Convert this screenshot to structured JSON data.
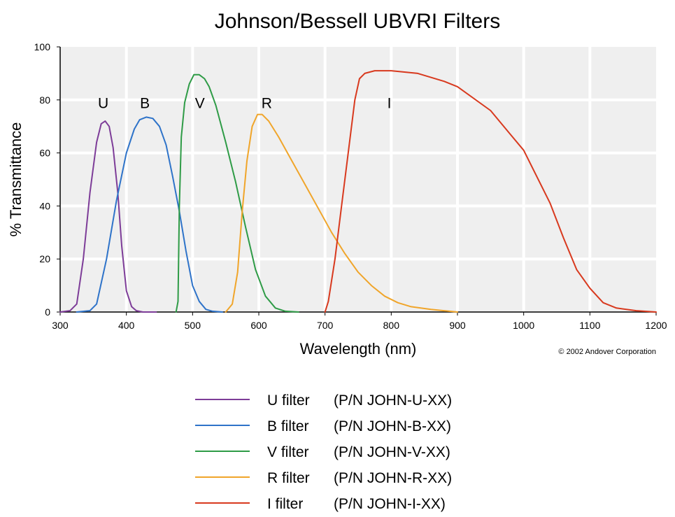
{
  "chart_data": {
    "type": "line",
    "title": "Johnson/Bessell UBVRI Filters",
    "xlabel": "Wavelength (nm)",
    "ylabel": "% Transmittance",
    "xlim": [
      300,
      1200
    ],
    "ylim": [
      0,
      100
    ],
    "x_ticks": [
      "300",
      "400",
      "500",
      "600",
      "700",
      "800",
      "900",
      "1000",
      "1100",
      "1200"
    ],
    "y_ticks": [
      "0",
      "20",
      "40",
      "60",
      "80",
      "100"
    ],
    "grid": true,
    "copyright": "© 2002 Andover Corporation",
    "series": [
      {
        "name": "U",
        "legend_name": "U filter",
        "part_number": "(P/N JOHN-U-XX)",
        "color": "#7d3c98",
        "label_pos": [
          365,
          79
        ],
        "points": [
          [
            300,
            0
          ],
          [
            315,
            0.5
          ],
          [
            325,
            3
          ],
          [
            335,
            20
          ],
          [
            345,
            45
          ],
          [
            355,
            64
          ],
          [
            362,
            71
          ],
          [
            368,
            72
          ],
          [
            374,
            70
          ],
          [
            380,
            62
          ],
          [
            387,
            45
          ],
          [
            393,
            25
          ],
          [
            400,
            8
          ],
          [
            408,
            2
          ],
          [
            415,
            0.5
          ],
          [
            425,
            0
          ],
          [
            445,
            0
          ]
        ]
      },
      {
        "name": "B",
        "legend_name": "B filter",
        "part_number": "(P/N JOHN-B-XX)",
        "color": "#2e73c9",
        "label_pos": [
          428,
          79
        ],
        "points": [
          [
            325,
            0
          ],
          [
            345,
            0.5
          ],
          [
            355,
            3
          ],
          [
            370,
            20
          ],
          [
            385,
            42
          ],
          [
            400,
            60
          ],
          [
            412,
            69
          ],
          [
            420,
            72.5
          ],
          [
            430,
            73.5
          ],
          [
            440,
            73
          ],
          [
            450,
            70
          ],
          [
            460,
            63
          ],
          [
            470,
            51
          ],
          [
            480,
            38
          ],
          [
            490,
            23
          ],
          [
            500,
            10
          ],
          [
            510,
            4
          ],
          [
            520,
            1
          ],
          [
            530,
            0.3
          ],
          [
            545,
            0
          ]
        ]
      },
      {
        "name": "V",
        "legend_name": "V filter",
        "part_number": "(P/N JOHN-V-XX)",
        "color": "#2e9b46",
        "label_pos": [
          511,
          79
        ],
        "points": [
          [
            475,
            0
          ],
          [
            478,
            4
          ],
          [
            480,
            40
          ],
          [
            483,
            66
          ],
          [
            488,
            79
          ],
          [
            495,
            86
          ],
          [
            502,
            89.5
          ],
          [
            510,
            89.5
          ],
          [
            518,
            88
          ],
          [
            525,
            85
          ],
          [
            535,
            78
          ],
          [
            550,
            64
          ],
          [
            565,
            49
          ],
          [
            580,
            32
          ],
          [
            595,
            16
          ],
          [
            610,
            6
          ],
          [
            625,
            1.5
          ],
          [
            640,
            0.3
          ],
          [
            660,
            0
          ]
        ]
      },
      {
        "name": "R",
        "legend_name": "R filter",
        "part_number": "(P/N JOHN-R-XX)",
        "color": "#f0a52a",
        "label_pos": [
          612,
          79
        ],
        "points": [
          [
            550,
            0
          ],
          [
            560,
            3
          ],
          [
            568,
            15
          ],
          [
            575,
            38
          ],
          [
            582,
            57
          ],
          [
            590,
            70
          ],
          [
            598,
            74.5
          ],
          [
            605,
            74.5
          ],
          [
            615,
            72
          ],
          [
            630,
            66
          ],
          [
            650,
            57
          ],
          [
            670,
            48
          ],
          [
            690,
            39
          ],
          [
            710,
            30
          ],
          [
            730,
            22
          ],
          [
            750,
            15
          ],
          [
            770,
            10
          ],
          [
            790,
            6
          ],
          [
            810,
            3.5
          ],
          [
            830,
            2
          ],
          [
            860,
            1
          ],
          [
            900,
            0
          ]
        ]
      },
      {
        "name": "I",
        "legend_name": "I filter",
        "part_number": "(P/N JOHN-I-XX)",
        "color": "#d8391e",
        "label_pos": [
          797,
          79
        ],
        "points": [
          [
            700,
            0
          ],
          [
            705,
            4
          ],
          [
            715,
            20
          ],
          [
            725,
            40
          ],
          [
            735,
            60
          ],
          [
            745,
            80
          ],
          [
            752,
            88
          ],
          [
            760,
            90
          ],
          [
            775,
            91
          ],
          [
            800,
            91
          ],
          [
            840,
            90
          ],
          [
            880,
            87
          ],
          [
            900,
            85
          ],
          [
            950,
            76
          ],
          [
            980,
            67
          ],
          [
            1000,
            61
          ],
          [
            1020,
            51
          ],
          [
            1040,
            41
          ],
          [
            1060,
            28
          ],
          [
            1080,
            16
          ],
          [
            1100,
            9
          ],
          [
            1120,
            3.5
          ],
          [
            1140,
            1.5
          ],
          [
            1170,
            0.5
          ],
          [
            1200,
            0
          ]
        ]
      }
    ]
  }
}
